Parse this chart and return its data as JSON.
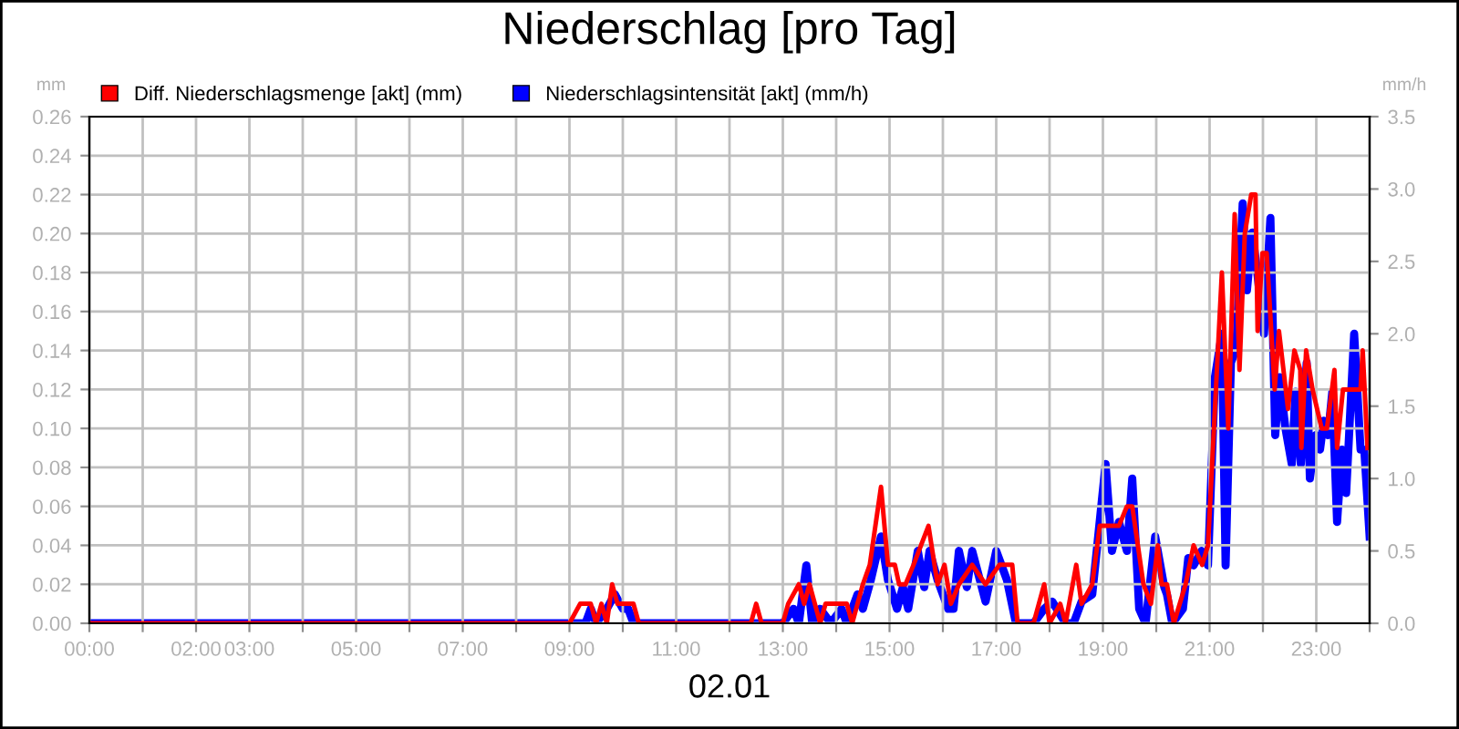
{
  "chart_data": {
    "type": "line",
    "title": "Niederschlag [pro Tag]",
    "xlabel": "02.01",
    "ylabel": "mm",
    "y2label": "mm/h",
    "xlim": [
      0,
      24
    ],
    "xticks": [
      {
        "value": 0,
        "label": "00:00"
      },
      {
        "value": 1,
        "label": null
      },
      {
        "value": 2,
        "label": "02:00"
      },
      {
        "value": 3,
        "label": "03:00"
      },
      {
        "value": 4,
        "label": null
      },
      {
        "value": 5,
        "label": "05:00"
      },
      {
        "value": 6,
        "label": null
      },
      {
        "value": 7,
        "label": "07:00"
      },
      {
        "value": 8,
        "label": null
      },
      {
        "value": 9,
        "label": "09:00"
      },
      {
        "value": 10,
        "label": null
      },
      {
        "value": 11,
        "label": "11:00"
      },
      {
        "value": 12,
        "label": null
      },
      {
        "value": 13,
        "label": "13:00"
      },
      {
        "value": 14,
        "label": null
      },
      {
        "value": 15,
        "label": "15:00"
      },
      {
        "value": 16,
        "label": null
      },
      {
        "value": 17,
        "label": "17:00"
      },
      {
        "value": 18,
        "label": null
      },
      {
        "value": 19,
        "label": "19:00"
      },
      {
        "value": 20,
        "label": null
      },
      {
        "value": 21,
        "label": "21:00"
      },
      {
        "value": 22,
        "label": null
      },
      {
        "value": 23,
        "label": "23:00"
      },
      {
        "value": 24,
        "label": null
      }
    ],
    "ylim": [
      0,
      0.26
    ],
    "yticks": [
      {
        "value": 0,
        "label": "0.00"
      },
      {
        "value": 0.02,
        "label": "0.02"
      },
      {
        "value": 0.04,
        "label": "0.04"
      },
      {
        "value": 0.06,
        "label": "0.06"
      },
      {
        "value": 0.08,
        "label": "0.08"
      },
      {
        "value": 0.1,
        "label": "0.10"
      },
      {
        "value": 0.12,
        "label": "0.12"
      },
      {
        "value": 0.14,
        "label": "0.14"
      },
      {
        "value": 0.16,
        "label": "0.16"
      },
      {
        "value": 0.18,
        "label": "0.18"
      },
      {
        "value": 0.2,
        "label": "0.20"
      },
      {
        "value": 0.22,
        "label": "0.22"
      },
      {
        "value": 0.24,
        "label": "0.24"
      },
      {
        "value": 0.26,
        "label": "0.26"
      }
    ],
    "y2lim": [
      0,
      3.5
    ],
    "y2ticks": [
      {
        "value": 0,
        "label": "0.0"
      },
      {
        "value": 0.5,
        "label": "0.5"
      },
      {
        "value": 1,
        "label": "1.0"
      },
      {
        "value": 1.5,
        "label": "1.5"
      },
      {
        "value": 2,
        "label": "2.0"
      },
      {
        "value": 2.5,
        "label": "2.5"
      },
      {
        "value": 3,
        "label": "3.0"
      },
      {
        "value": 3.5,
        "label": "3.5"
      }
    ],
    "grid": true,
    "legend": "top left",
    "line_style": "solid",
    "marker": "none",
    "series": [
      {
        "name": "Diff. Niederschlagsmenge [akt] (mm)",
        "color": "#ff0000",
        "x": [
          0,
          9.0,
          9.2,
          9.4,
          9.5,
          9.6,
          9.7,
          9.8,
          9.9,
          10.0,
          10.2,
          10.3,
          12.4,
          12.5,
          12.6,
          13.0,
          13.1,
          13.3,
          13.4,
          13.5,
          13.6,
          13.7,
          13.8,
          14.0,
          14.2,
          14.3,
          14.4,
          14.5,
          14.63,
          14.84,
          14.97,
          15.1,
          15.18,
          15.3,
          15.45,
          15.73,
          15.9,
          16.03,
          16.15,
          16.3,
          16.55,
          16.8,
          17.06,
          17.3,
          17.4,
          17.7,
          17.9,
          18.0,
          18.2,
          18.3,
          18.5,
          18.6,
          18.8,
          18.94,
          19.3,
          19.45,
          19.55,
          19.76,
          19.9,
          20.03,
          20.1,
          20.2,
          20.33,
          20.55,
          20.7,
          20.86,
          20.97,
          21.23,
          21.35,
          21.47,
          21.56,
          21.66,
          21.78,
          21.86,
          21.9,
          21.99,
          22.07,
          22.22,
          22.3,
          22.47,
          22.59,
          22.7,
          22.72,
          22.81,
          22.93,
          23.1,
          23.2,
          23.34,
          23.39,
          23.5,
          23.68,
          23.83,
          23.87,
          23.96
        ],
        "values": [
          0,
          0,
          0.01,
          0.01,
          0,
          0.01,
          0,
          0.02,
          0.01,
          0.01,
          0.01,
          0,
          0,
          0.01,
          0,
          0,
          0.01,
          0.02,
          0.01,
          0.02,
          0.01,
          0,
          0.01,
          0.01,
          0.01,
          0,
          0.01,
          0.02,
          0.03,
          0.07,
          0.03,
          0.03,
          0.02,
          0.02,
          0.03,
          0.05,
          0.02,
          0.03,
          0.01,
          0.02,
          0.03,
          0.02,
          0.03,
          0.03,
          0,
          0,
          0.02,
          0,
          0.01,
          0,
          0.03,
          0.01,
          0.02,
          0.05,
          0.05,
          0.06,
          0.06,
          0.02,
          0.01,
          0.04,
          0.02,
          0.02,
          0,
          0.02,
          0.04,
          0.03,
          0.04,
          0.18,
          0.1,
          0.21,
          0.13,
          0.2,
          0.22,
          0.22,
          0.15,
          0.19,
          0.19,
          0.12,
          0.15,
          0.11,
          0.14,
          0.13,
          0.09,
          0.14,
          0.12,
          0.1,
          0.1,
          0.13,
          0.09,
          0.12,
          0.12,
          0.12,
          0.14,
          0.09
        ]
      },
      {
        "name": "Niederschlagsintensität [akt] (mm/h)",
        "color": "#0000ff",
        "axis": "y2",
        "x": [
          0,
          9.3,
          9.4,
          9.5,
          9.7,
          9.85,
          10.0,
          10.1,
          10.2,
          13.0,
          13.2,
          13.3,
          13.44,
          13.55,
          13.7,
          13.9,
          14.1,
          14.2,
          14.4,
          14.5,
          14.65,
          14.84,
          14.97,
          15.14,
          15.25,
          15.35,
          15.53,
          15.65,
          15.75,
          15.9,
          16.1,
          16.2,
          16.3,
          16.45,
          16.55,
          16.8,
          17.0,
          17.2,
          17.37,
          17.7,
          17.9,
          18.05,
          18.3,
          18.45,
          18.6,
          18.8,
          19.05,
          19.17,
          19.3,
          19.45,
          19.55,
          19.68,
          19.8,
          19.98,
          20.15,
          20.2,
          20.3,
          20.5,
          20.6,
          20.7,
          20.85,
          20.97,
          21.1,
          21.23,
          21.3,
          21.4,
          21.5,
          21.62,
          21.7,
          21.8,
          21.9,
          22.02,
          22.14,
          22.23,
          22.31,
          22.42,
          22.54,
          22.61,
          22.71,
          22.82,
          22.88,
          22.99,
          23.07,
          23.14,
          23.22,
          23.3,
          23.39,
          23.48,
          23.56,
          23.71,
          23.83,
          23.9,
          24.0
        ],
        "values": [
          0,
          0,
          0.1,
          0,
          0.1,
          0.2,
          0.1,
          0.1,
          0,
          0,
          0.1,
          0,
          0.4,
          0,
          0.1,
          0,
          0.1,
          0,
          0.2,
          0.1,
          0.3,
          0.6,
          0.3,
          0.1,
          0.25,
          0.1,
          0.5,
          0.25,
          0.5,
          0.3,
          0.1,
          0.1,
          0.5,
          0.25,
          0.5,
          0.15,
          0.5,
          0.3,
          0,
          0,
          0.1,
          0.15,
          0,
          0,
          0.15,
          0.2,
          1.1,
          0.5,
          0.7,
          0.5,
          1.0,
          0.1,
          0,
          0.6,
          0.25,
          0.2,
          0,
          0.1,
          0.45,
          0.4,
          0.5,
          0.4,
          1.7,
          2.0,
          0.4,
          1.8,
          1.9,
          2.9,
          2.3,
          2.7,
          2.4,
          2.0,
          2.8,
          1.3,
          1.7,
          1.35,
          1.1,
          1.6,
          1.1,
          1.8,
          1.0,
          1.3,
          1.2,
          1.4,
          1.3,
          1.6,
          0.7,
          1.2,
          0.9,
          2.0,
          1.2,
          1.2,
          0.6
        ]
      }
    ]
  }
}
